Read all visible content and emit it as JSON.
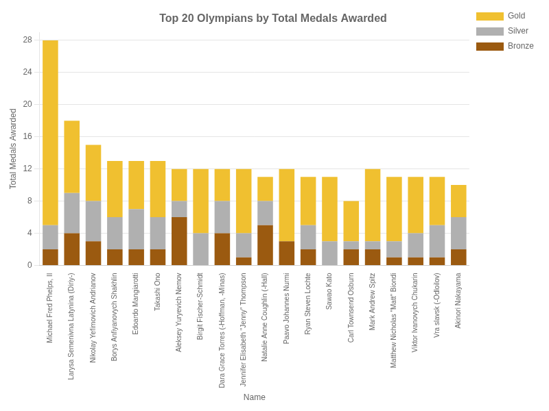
{
  "chart_data": {
    "type": "bar",
    "title": "Top 20 Olympians by Total Medals Awarded",
    "xlabel": "Name",
    "ylabel": "Total Medals Awarded",
    "categories": [
      "Michael Fred Phelps, II",
      "Larysa Semenivna Latynina (Diriy-)",
      "Nikolay Yefimovich Andrianov",
      "Borys Anfiyanovych Shakhlin",
      "Edoardo Mangiarotti",
      "Takashi Ono",
      "Aleksey Yuryevich Nemov",
      "Birgit Fischer-Schmidt",
      "Dara Grace Torres (-Hoffman, -Minas)",
      "Jennifer Elisabeth \"Jenny\" Thompson",
      "Natalie Anne Coughlin (-Hall)",
      "Paavo Johannes Nurmi",
      "Ryan Steven Lochte",
      "Sawao Kato",
      "Carl Townsend Osburn",
      "Mark Andrew Spitz",
      "Matthew Nicholas \"Matt\" Biondi",
      "Viktor Ivanovych Chukarin",
      "Vra slavsk (-Odloilov)",
      "Akinori Nakayama"
    ],
    "series": [
      {
        "name": "Bronze",
        "color": "#9b5a10",
        "values": [
          2,
          4,
          3,
          2,
          2,
          2,
          6,
          0,
          4,
          1,
          5,
          3,
          2,
          0,
          2,
          2,
          1,
          1,
          1,
          2
        ]
      },
      {
        "name": "Silver",
        "color": "#b0b0b0",
        "values": [
          3,
          5,
          5,
          4,
          5,
          4,
          2,
          4,
          4,
          3,
          3,
          0,
          3,
          3,
          1,
          1,
          2,
          3,
          4,
          4
        ]
      },
      {
        "name": "Gold",
        "color": "#f0c030",
        "values": [
          23,
          9,
          7,
          7,
          6,
          7,
          4,
          8,
          4,
          8,
          3,
          9,
          6,
          8,
          5,
          9,
          8,
          7,
          6,
          4
        ]
      }
    ],
    "stacked": true,
    "ylim": [
      0,
      29
    ],
    "yticks": [
      0,
      4,
      8,
      12,
      16,
      20,
      24,
      28
    ],
    "grid": true,
    "legend": "right"
  }
}
